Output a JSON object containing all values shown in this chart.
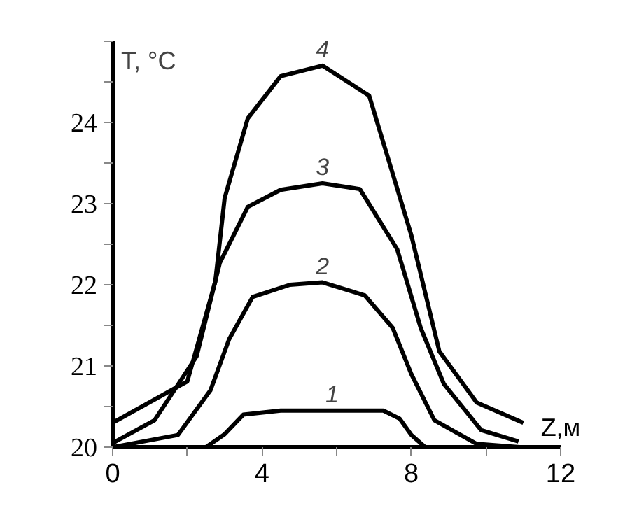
{
  "chart_data": {
    "type": "line",
    "xlabel": "Z,м",
    "ylabel": "T, °C",
    "xlim": [
      0,
      12
    ],
    "ylim": [
      20,
      25
    ],
    "xticks": [
      0,
      {
        "value": 2,
        "label": null
      },
      4,
      {
        "value": 6,
        "label": null
      },
      8,
      {
        "value": 10,
        "label": null
      },
      12
    ],
    "yticks": [
      20,
      {
        "value": 20.5,
        "label": null
      },
      21,
      {
        "value": 21.5,
        "label": null
      },
      22,
      {
        "value": 22.5,
        "label": null
      },
      23,
      {
        "value": 23.5,
        "label": null
      },
      24,
      {
        "value": 24.5,
        "label": null
      },
      {
        "value": 25,
        "label": null
      }
    ],
    "grid": false,
    "marker": "none",
    "line_style": "solid",
    "series": [
      {
        "name": "1",
        "color": "#000000",
        "x": [
          0,
          2.5,
          3.0,
          3.5,
          4.5,
          7.25,
          7.69,
          8.0,
          8.37,
          11.0
        ],
        "values": [
          20.0,
          20.0,
          20.16,
          20.4,
          20.45,
          20.45,
          20.35,
          20.15,
          20.0,
          20.0
        ]
      },
      {
        "name": "2",
        "color": "#000000",
        "x": [
          0,
          1.75,
          2.62,
          3.12,
          3.75,
          4.75,
          5.62,
          6.75,
          7.5,
          8.0,
          8.62,
          9.75,
          10.9
        ],
        "values": [
          20.0,
          20.15,
          20.7,
          21.33,
          21.85,
          22.0,
          22.03,
          21.87,
          21.47,
          20.9,
          20.33,
          20.04,
          20.0
        ]
      },
      {
        "name": "3",
        "color": "#000000",
        "x": [
          0,
          1.12,
          2.25,
          2.87,
          3.62,
          4.5,
          5.62,
          6.62,
          7.62,
          8.25,
          8.87,
          9.87,
          10.87
        ],
        "values": [
          20.05,
          20.33,
          21.12,
          22.27,
          22.96,
          23.17,
          23.25,
          23.18,
          22.44,
          21.47,
          20.78,
          20.21,
          20.07
        ]
      },
      {
        "name": "4",
        "color": "#000000",
        "x": [
          0,
          2.0,
          2.75,
          3.0,
          3.62,
          4.5,
          5.62,
          6.87,
          8.0,
          8.75,
          9.75,
          11.0
        ],
        "values": [
          20.3,
          20.81,
          22.04,
          23.07,
          24.05,
          24.57,
          24.7,
          24.33,
          22.61,
          21.18,
          20.55,
          20.3
        ]
      }
    ]
  }
}
